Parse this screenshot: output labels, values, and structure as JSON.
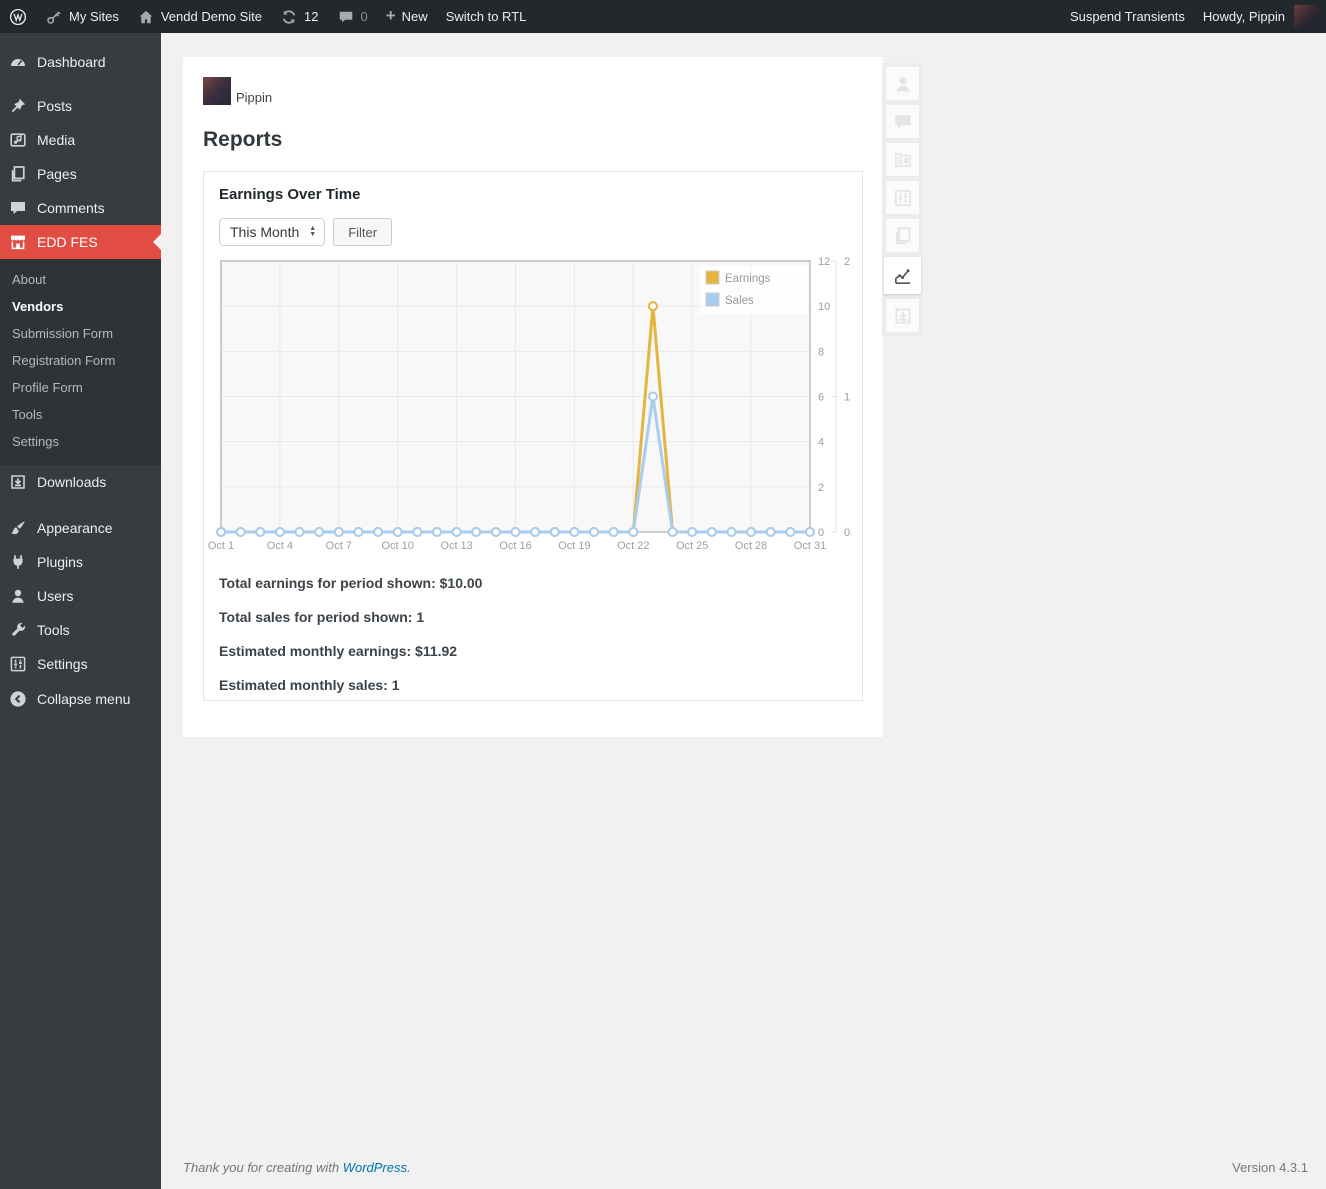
{
  "admin_bar": {
    "my_sites": "My Sites",
    "site_name": "Vendd Demo Site",
    "update_count": "12",
    "comment_count": "0",
    "new_label": "New",
    "rtl_label": "Switch to RTL",
    "suspend_transients": "Suspend Transients",
    "howdy": "Howdy, Pippin"
  },
  "sidebar": {
    "items": [
      {
        "label": "Dashboard",
        "icon": "dashboard-icon"
      },
      {
        "label": "Posts",
        "icon": "pushpin-icon"
      },
      {
        "label": "Media",
        "icon": "media-icon"
      },
      {
        "label": "Pages",
        "icon": "pages-icon"
      },
      {
        "label": "Comments",
        "icon": "comment-icon"
      },
      {
        "label": "EDD FES",
        "icon": "store-icon"
      },
      {
        "label": "Downloads",
        "icon": "download-icon"
      },
      {
        "label": "Appearance",
        "icon": "brush-icon"
      },
      {
        "label": "Plugins",
        "icon": "plugin-icon"
      },
      {
        "label": "Users",
        "icon": "user-icon"
      },
      {
        "label": "Tools",
        "icon": "wrench-icon"
      },
      {
        "label": "Settings",
        "icon": "sliders-icon"
      },
      {
        "label": "Collapse menu",
        "icon": "collapse-icon"
      }
    ],
    "edd_submenu": [
      "About",
      "Vendors",
      "Submission Form",
      "Registration Form",
      "Profile Form",
      "Tools",
      "Settings"
    ],
    "edd_submenu_current": "Vendors"
  },
  "main": {
    "vendor_name": "Pippin",
    "page_title": "Reports",
    "panel_title": "Earnings Over Time",
    "period_select_value": "This Month",
    "filter_button": "Filter",
    "stats": [
      "Total earnings for period shown: $10.00",
      "Total sales for period shown: 1",
      "Estimated monthly earnings: $11.92",
      "Estimated monthly sales: 1"
    ]
  },
  "side_toolbar": {
    "icons": [
      "user-icon",
      "comment-icon",
      "products-icon",
      "sliders-icon",
      "pages-icon",
      "chart-line-icon",
      "download-icon"
    ],
    "active": "chart-line-icon"
  },
  "footer": {
    "thanks_prefix": "Thank you for creating with",
    "wordpress_link": "WordPress.",
    "version": "Version 4.3.1"
  },
  "chart_data": {
    "type": "line",
    "title": "Earnings Over Time",
    "categories": [
      "Oct 1",
      "Oct 2",
      "Oct 3",
      "Oct 4",
      "Oct 5",
      "Oct 6",
      "Oct 7",
      "Oct 8",
      "Oct 9",
      "Oct 10",
      "Oct 11",
      "Oct 12",
      "Oct 13",
      "Oct 14",
      "Oct 15",
      "Oct 16",
      "Oct 17",
      "Oct 18",
      "Oct 19",
      "Oct 20",
      "Oct 21",
      "Oct 22",
      "Oct 23",
      "Oct 24",
      "Oct 25",
      "Oct 26",
      "Oct 27",
      "Oct 28",
      "Oct 29",
      "Oct 30",
      "Oct 31"
    ],
    "x_tick_every": 3,
    "series": [
      {
        "name": "Earnings",
        "axis": "left",
        "color": "#e5b43f",
        "values": [
          0,
          0,
          0,
          0,
          0,
          0,
          0,
          0,
          0,
          0,
          0,
          0,
          0,
          0,
          0,
          0,
          0,
          0,
          0,
          0,
          0,
          0,
          10,
          0,
          0,
          0,
          0,
          0,
          0,
          0,
          0
        ]
      },
      {
        "name": "Sales",
        "axis": "right",
        "color": "#a8cdee",
        "values": [
          0,
          0,
          0,
          0,
          0,
          0,
          0,
          0,
          0,
          0,
          0,
          0,
          0,
          0,
          0,
          0,
          0,
          0,
          0,
          0,
          0,
          0,
          1,
          0,
          0,
          0,
          0,
          0,
          0,
          0,
          0
        ]
      }
    ],
    "left_axis": {
      "min": 0,
      "max": 12,
      "tick_step": 2
    },
    "right_axis": {
      "min": 0,
      "max": 2,
      "ticks": [
        0,
        1,
        2
      ]
    },
    "legend_position": "top-right",
    "grid": true,
    "plot_bg": "#f8f8f8",
    "grid_color": "#e9e9e9",
    "border_color": "#cccccc"
  }
}
